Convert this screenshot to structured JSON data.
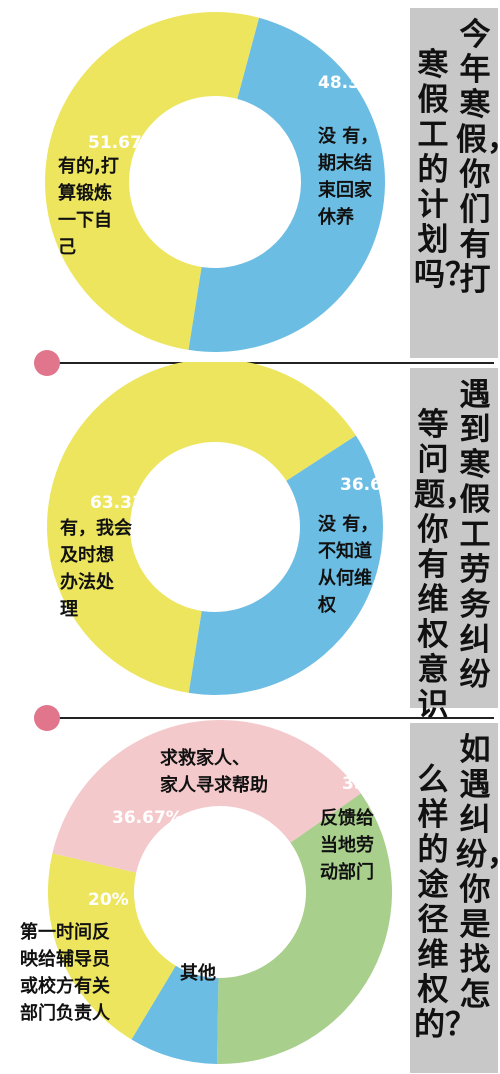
{
  "chart_data": [
    {
      "type": "pie",
      "title": "今年寒假，你们有打寒假工的计划吗？",
      "title_columns": [
        "今年寒假，你们有打",
        "寒假工的计划吗？"
      ],
      "slices": [
        {
          "value": 48.33,
          "value_label": "48.33%",
          "label": "没有，期末结束回家休养",
          "label_lines": [
            "没 有，",
            "期末结",
            "束回家",
            "休养"
          ],
          "color": "#6cbde3"
        },
        {
          "value": 51.67,
          "value_label": "51.67%",
          "label": "有的，打算锻炼一下自己",
          "label_lines": [
            "有的,打",
            "算锻炼",
            "一下自",
            "己"
          ],
          "color": "#ece55d"
        }
      ]
    },
    {
      "type": "pie",
      "title": "遇到寒假工劳务纠纷等问题，你有维权意识吗？",
      "title_columns": [
        "遇到寒假工劳务纠纷",
        "等问题，你有维权意识吗？"
      ],
      "slices": [
        {
          "value": 36.67,
          "value_label": "36.67%",
          "label": "没有，不知道从何维权",
          "label_lines": [
            "没 有，",
            "不知道",
            "从何维",
            "权"
          ],
          "color": "#6cbde3"
        },
        {
          "value": 63.33,
          "value_label": "63.33%",
          "label": "有，我会及时想办法处理",
          "label_lines": [
            "有，我会",
            "及时想",
            "办法处",
            "理"
          ],
          "color": "#ece55d"
        }
      ]
    },
    {
      "type": "pie",
      "title": "如遇纠纷，你是找怎么样的途径维权的？",
      "title_columns": [
        "如遇纠纷，你是找怎",
        "么样的途径维权的？"
      ],
      "slices": [
        {
          "value": 35,
          "value_label": "35%",
          "label": "反馈给当地劳动部门",
          "label_lines": [
            "反馈给",
            "当地劳",
            "动部门"
          ],
          "color": "#a8cf8b"
        },
        {
          "value": 8.33,
          "value_label": "8.33%",
          "label": "其他",
          "label_lines": [
            "其他"
          ],
          "color": "#6cbde3"
        },
        {
          "value": 20,
          "value_label": "20%",
          "label": "第一时间反映给辅导员或校方有关部门负责人",
          "label_lines": [
            "第一时间反",
            "映给辅导员",
            "或校方有关",
            "部门负责人"
          ],
          "color": "#ece55d"
        },
        {
          "value": 36.67,
          "value_label": "36.67%",
          "label": "求救家人、家人寻求帮助",
          "label_lines": [
            "求救家人、",
            "家人寻求帮助"
          ],
          "color": "#f4c9cb"
        }
      ]
    }
  ]
}
